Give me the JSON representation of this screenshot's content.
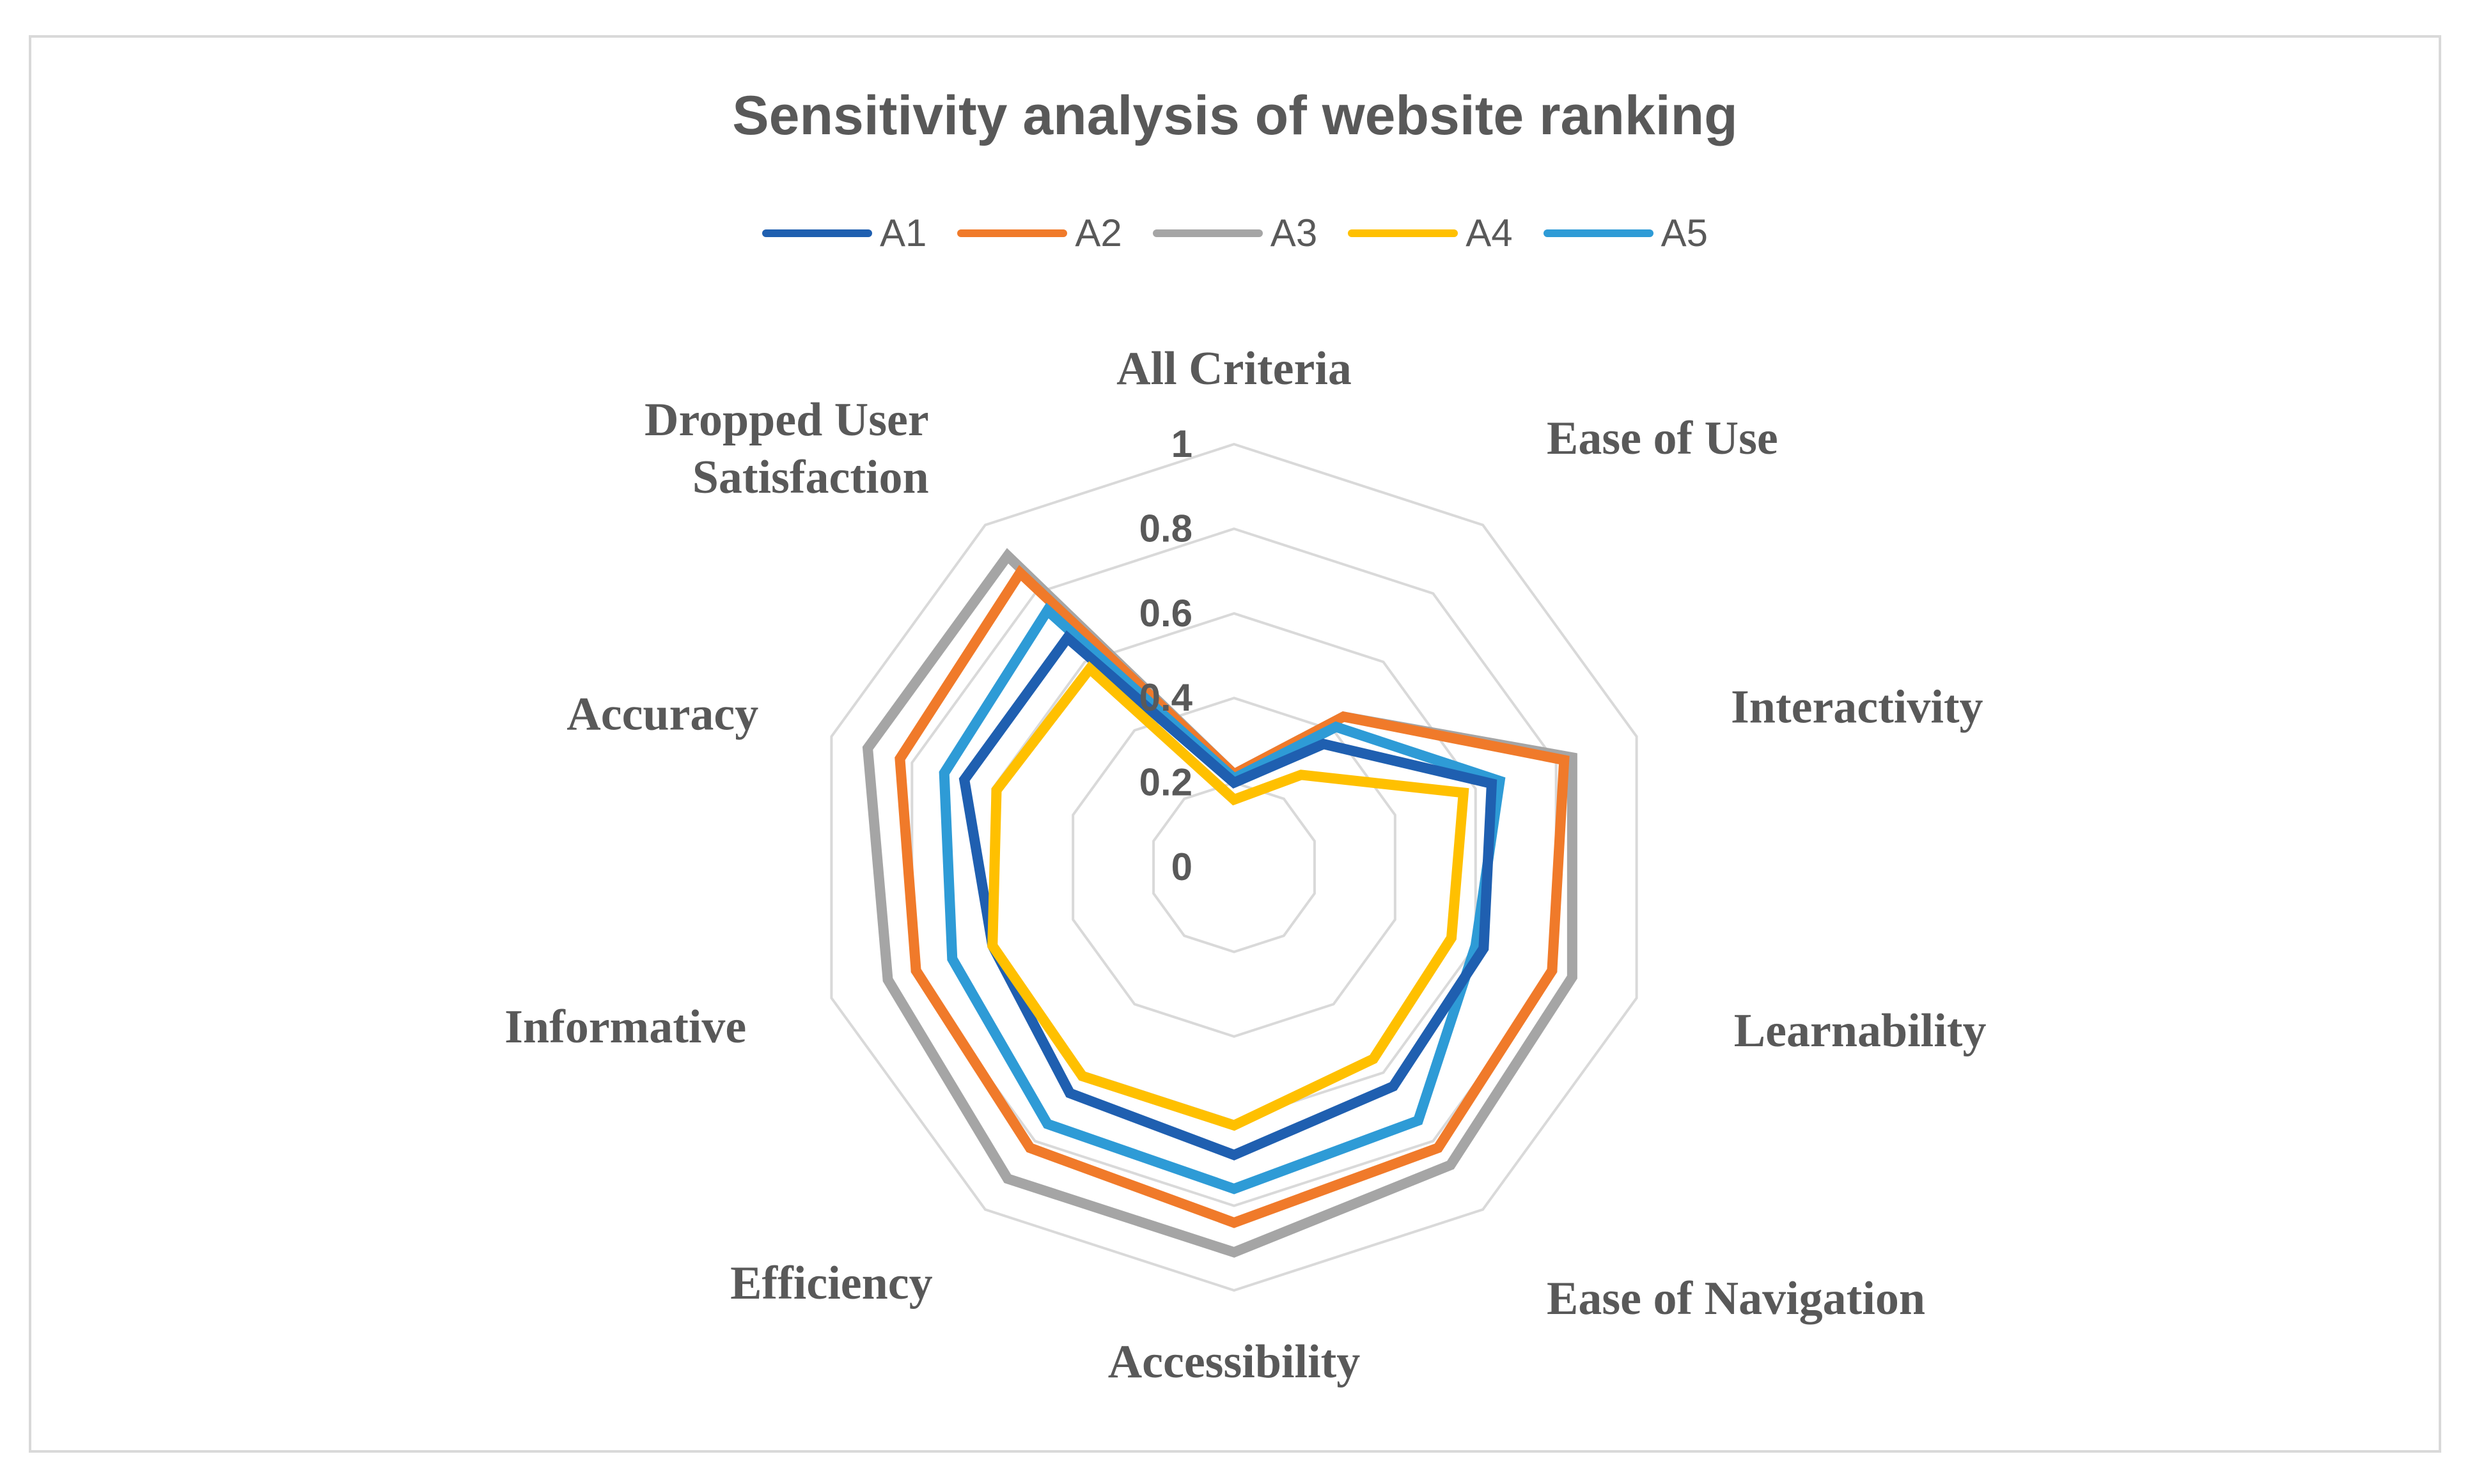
{
  "chart_data": {
    "type": "radar",
    "title": "Sensitivity analysis of website ranking",
    "axes": [
      "All Criteria",
      "Ease of Use",
      "Interactivity",
      "Learnability",
      "Ease of Navigation",
      "Accessibility",
      "Efficiency",
      "Informative",
      "Accuracy",
      "Dropped User Satisfaction"
    ],
    "axis_label_lines": [
      [
        "All Criteria"
      ],
      [
        "Ease of Use"
      ],
      [
        "Interactivity"
      ],
      [
        "Learnability"
      ],
      [
        "Ease of Navigation"
      ],
      [
        "Accessibility"
      ],
      [
        "Efficiency"
      ],
      [
        "Informative"
      ],
      [
        "Accuracy"
      ],
      [
        "Dropped User",
        "Satisfaction"
      ]
    ],
    "rlim": [
      0,
      1
    ],
    "ticks": [
      0,
      0.2,
      0.4,
      0.6,
      0.8,
      1
    ],
    "tick_labels": [
      "0",
      "0.2",
      "0.4",
      "0.6",
      "0.8",
      "1"
    ],
    "legend_position": "top",
    "series": [
      {
        "name": "A1",
        "color": "#1f5fb0",
        "values": [
          0.2,
          0.36,
          0.64,
          0.62,
          0.64,
          0.68,
          0.66,
          0.6,
          0.67,
          0.67
        ]
      },
      {
        "name": "A2",
        "color": "#f07a2a",
        "values": [
          0.22,
          0.44,
          0.82,
          0.79,
          0.82,
          0.84,
          0.82,
          0.79,
          0.83,
          0.86
        ]
      },
      {
        "name": "A3",
        "color": "#a5a5a5",
        "values": [
          0.22,
          0.44,
          0.84,
          0.84,
          0.87,
          0.91,
          0.91,
          0.86,
          0.91,
          0.91
        ]
      },
      {
        "name": "A4",
        "color": "#ffc000",
        "values": [
          0.16,
          0.27,
          0.57,
          0.54,
          0.56,
          0.61,
          0.61,
          0.6,
          0.59,
          0.58
        ]
      },
      {
        "name": "A5",
        "color": "#2e9bd6",
        "values": [
          0.21,
          0.41,
          0.66,
          0.6,
          0.74,
          0.76,
          0.75,
          0.7,
          0.72,
          0.75
        ]
      }
    ]
  }
}
